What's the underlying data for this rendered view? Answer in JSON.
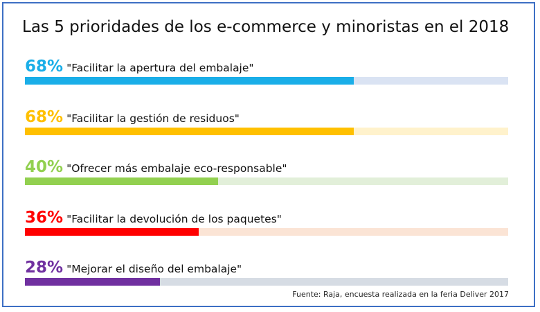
{
  "title": "Las 5 prioridades de los e-commerce y minoristas en el 2018",
  "source": "Fuente: Raja, encuesta realizada en la feria Deliver 2017",
  "chart_data": {
    "type": "bar",
    "title": "Las 5 prioridades de los e-commerce y minoristas en el 2018",
    "orientation": "horizontal",
    "ylim": [
      0,
      100
    ],
    "unit": "%",
    "items": [
      {
        "percent_label": "68%",
        "value": 68,
        "label": "\"Facilitar la apertura del embalaje\"",
        "color": "#1aaee8",
        "track_color": "#dae3f3"
      },
      {
        "percent_label": "68%",
        "value": 68,
        "label": "\"Facilitar la gestión de residuos\"",
        "color": "#ffc000",
        "track_color": "#fff2cc"
      },
      {
        "percent_label": "40%",
        "value": 40,
        "label": "\"Ofrecer más embalaje eco-responsable\"",
        "color": "#92d050",
        "track_color": "#e2efd9"
      },
      {
        "percent_label": "36%",
        "value": 36,
        "label": "\"Facilitar la devolución de los paquetes\"",
        "color": "#ff0000",
        "track_color": "#fbe4d5"
      },
      {
        "percent_label": "28%",
        "value": 28,
        "label": "\"Mejorar el diseño del embalaje\"",
        "color": "#7030a0",
        "track_color": "#d6dce4"
      }
    ]
  }
}
